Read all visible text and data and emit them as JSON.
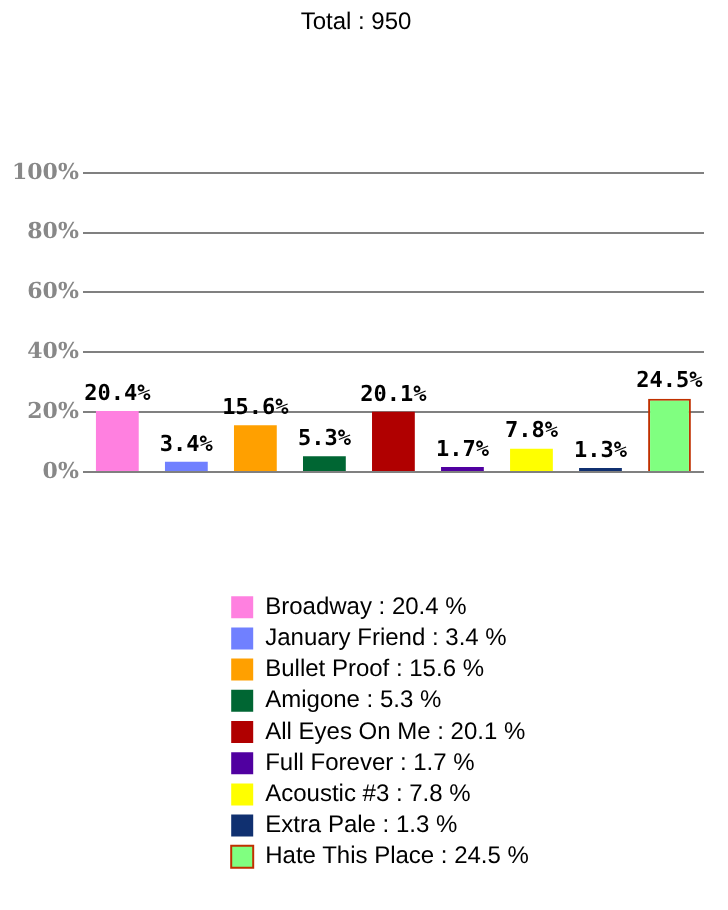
{
  "chart_data": {
    "type": "bar",
    "title": "Total : 950",
    "categories": [
      null,
      null,
      null,
      null,
      null,
      null,
      null,
      null,
      null
    ],
    "series": [
      {
        "name": "Broadway : 20.4 %",
        "color": "#ff80e0",
        "values": [
          20.4,
          null,
          null,
          null,
          null,
          null,
          null,
          null,
          null
        ],
        "value_labels": [
          "20.4%",
          null,
          null,
          null,
          null,
          null,
          null,
          null,
          null
        ]
      },
      {
        "name": "January Friend : 3.4 %",
        "color": "#7080ff",
        "values": [
          null,
          3.4,
          null,
          null,
          null,
          null,
          null,
          null,
          null
        ],
        "value_labels": [
          null,
          "3.4%",
          null,
          null,
          null,
          null,
          null,
          null,
          null
        ]
      },
      {
        "name": "Bullet Proof : 15.6 %",
        "color": "#ffa000",
        "values": [
          null,
          null,
          15.6,
          null,
          null,
          null,
          null,
          null,
          null
        ],
        "value_labels": [
          null,
          null,
          "15.6%",
          null,
          null,
          null,
          null,
          null,
          null
        ]
      },
      {
        "name": "Amigone : 5.3 %",
        "color": "#006633",
        "values": [
          null,
          null,
          null,
          5.3,
          null,
          null,
          null,
          null,
          null
        ],
        "value_labels": [
          null,
          null,
          null,
          "5.3%",
          null,
          null,
          null,
          null,
          null
        ]
      },
      {
        "name": "All Eyes On Me : 20.1 %",
        "color": "#b00000",
        "values": [
          null,
          null,
          null,
          null,
          20.1,
          null,
          null,
          null,
          null
        ],
        "value_labels": [
          null,
          null,
          null,
          null,
          "20.1%",
          null,
          null,
          null,
          null
        ]
      },
      {
        "name": "Full Forever : 1.7 %",
        "color": "#5000a0",
        "values": [
          null,
          null,
          null,
          null,
          null,
          1.7,
          null,
          null,
          null
        ],
        "value_labels": [
          null,
          null,
          null,
          null,
          null,
          "1.7%",
          null,
          null,
          null
        ]
      },
      {
        "name": "Acoustic #3 : 7.8 %",
        "color": "#ffff00",
        "values": [
          null,
          null,
          null,
          null,
          null,
          null,
          7.8,
          null,
          null
        ],
        "value_labels": [
          null,
          null,
          null,
          null,
          null,
          null,
          "7.8%",
          null,
          null
        ]
      },
      {
        "name": "Extra Pale : 1.3 %",
        "color": "#103070",
        "values": [
          null,
          null,
          null,
          null,
          null,
          null,
          null,
          1.3,
          null
        ],
        "value_labels": [
          null,
          null,
          null,
          null,
          null,
          null,
          null,
          "1.3%",
          null
        ]
      },
      {
        "name": "Hate This Place : 24.5 %",
        "color": "#80ff80",
        "values": [
          null,
          null,
          null,
          null,
          null,
          null,
          null,
          null,
          24.5
        ],
        "value_labels": [
          null,
          null,
          null,
          null,
          null,
          null,
          null,
          null,
          "24.5%"
        ]
      }
    ],
    "ylim": [
      0,
      100
    ],
    "yticks": [
      {
        "value": 0,
        "label": "0%"
      },
      {
        "value": 20,
        "label": "20%"
      },
      {
        "value": 40,
        "label": "40%"
      },
      {
        "value": 60,
        "label": "60%"
      },
      {
        "value": 80,
        "label": "80%"
      },
      {
        "value": 100,
        "label": "100%"
      }
    ],
    "grid": "y",
    "legend": "bottom",
    "tick_labels": "y"
  }
}
